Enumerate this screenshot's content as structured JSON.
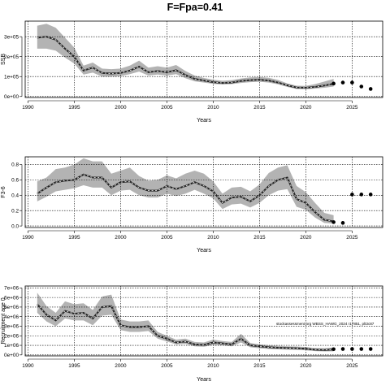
{
  "title": "F=Fpa=0.41",
  "chart_data": [
    {
      "type": "line",
      "xlabel": "Years",
      "ylabel": "SSB",
      "xlim": [
        1989.7,
        2028.3
      ],
      "ylim": [
        -5000,
        378000
      ],
      "x_ticks": [
        1990,
        1995,
        2000,
        2005,
        2010,
        2015,
        2020,
        2025
      ],
      "y_ticks": [
        0,
        100000,
        200000,
        300000
      ],
      "y_tick_labels": [
        "0e+00",
        "1e+05",
        "2e+05",
        "3e+05"
      ],
      "grid": true,
      "x": [
        1991,
        1992,
        1993,
        1994,
        1995,
        1996,
        1997,
        1998,
        1999,
        2000,
        2001,
        2002,
        2003,
        2004,
        2005,
        2006,
        2007,
        2008,
        2009,
        2010,
        2011,
        2012,
        2013,
        2014,
        2015,
        2016,
        2017,
        2018,
        2019,
        2020,
        2021,
        2022,
        2023
      ],
      "median": [
        295000,
        300000,
        285000,
        240000,
        200000,
        130000,
        145000,
        118000,
        115000,
        118000,
        130000,
        150000,
        122000,
        128000,
        122000,
        132000,
        108000,
        88000,
        80000,
        72000,
        68000,
        70000,
        78000,
        82000,
        84000,
        80000,
        70000,
        56000,
        45000,
        44000,
        48000,
        55000,
        64000
      ],
      "lower": [
        240000,
        240000,
        230000,
        195000,
        165000,
        110000,
        120000,
        100000,
        100000,
        102000,
        112000,
        125000,
        105000,
        110000,
        105000,
        112000,
        92000,
        76000,
        70000,
        63000,
        60000,
        62000,
        68000,
        72000,
        74000,
        70000,
        61000,
        48000,
        38000,
        37000,
        40000,
        44000,
        50000
      ],
      "upper": [
        355000,
        365000,
        345000,
        295000,
        245000,
        155000,
        170000,
        140000,
        137000,
        140000,
        155000,
        180000,
        145000,
        152000,
        145000,
        158000,
        128000,
        105000,
        93000,
        84000,
        79000,
        82000,
        90000,
        96000,
        98000,
        94000,
        83000,
        66000,
        54000,
        53000,
        62000,
        75000,
        88000
      ],
      "projection": {
        "x": [
          2023,
          2024,
          2025,
          2026,
          2027
        ],
        "y": [
          65000,
          70000,
          70000,
          50000,
          38000
        ]
      }
    },
    {
      "type": "line",
      "xlabel": "Years",
      "ylabel": "F3-6",
      "xlim": [
        1989.7,
        2028.3
      ],
      "ylim": [
        -0.02,
        0.9
      ],
      "x_ticks": [
        1990,
        1995,
        2000,
        2005,
        2010,
        2015,
        2020,
        2025
      ],
      "y_ticks": [
        0,
        0.2,
        0.4,
        0.6,
        0.8
      ],
      "y_tick_labels": [
        "0.0",
        "0.2",
        "0.4",
        "0.6",
        "0.8"
      ],
      "grid": true,
      "x": [
        1991,
        1992,
        1993,
        1994,
        1995,
        1996,
        1997,
        1998,
        1999,
        2000,
        2001,
        2002,
        2003,
        2004,
        2005,
        2006,
        2007,
        2008,
        2009,
        2010,
        2011,
        2012,
        2013,
        2014,
        2015,
        2016,
        2017,
        2018,
        2019,
        2020,
        2021,
        2022,
        2023
      ],
      "median": [
        0.42,
        0.5,
        0.57,
        0.59,
        0.6,
        0.67,
        0.63,
        0.63,
        0.5,
        0.57,
        0.58,
        0.5,
        0.46,
        0.46,
        0.52,
        0.48,
        0.52,
        0.57,
        0.52,
        0.45,
        0.3,
        0.37,
        0.38,
        0.32,
        0.4,
        0.52,
        0.6,
        0.63,
        0.35,
        0.3,
        0.18,
        0.08,
        0.06
      ],
      "lower": [
        0.32,
        0.38,
        0.45,
        0.47,
        0.49,
        0.53,
        0.5,
        0.5,
        0.4,
        0.46,
        0.47,
        0.4,
        0.37,
        0.37,
        0.42,
        0.39,
        0.42,
        0.47,
        0.42,
        0.36,
        0.22,
        0.28,
        0.29,
        0.24,
        0.3,
        0.4,
        0.46,
        0.48,
        0.25,
        0.21,
        0.11,
        0.04,
        0.03
      ],
      "upper": [
        0.58,
        0.63,
        0.74,
        0.76,
        0.8,
        0.88,
        0.84,
        0.84,
        0.68,
        0.72,
        0.76,
        0.65,
        0.59,
        0.6,
        0.66,
        0.62,
        0.68,
        0.72,
        0.68,
        0.58,
        0.42,
        0.5,
        0.51,
        0.45,
        0.54,
        0.69,
        0.76,
        0.79,
        0.52,
        0.44,
        0.3,
        0.17,
        0.14
      ],
      "projection": {
        "x": [
          2023,
          2024,
          2025,
          2026,
          2027
        ],
        "y": [
          0.05,
          0.04,
          0.41,
          0.41,
          0.41
        ]
      }
    },
    {
      "type": "line",
      "xlabel": "Years",
      "ylabel": "Recruitment age 0",
      "xlim": [
        1989.7,
        2028.3
      ],
      "ylim": [
        -100000,
        7200000
      ],
      "x_ticks": [
        1990,
        1995,
        2000,
        2005,
        2010,
        2015,
        2020,
        2025
      ],
      "y_ticks": [
        0,
        1000000,
        2000000,
        3000000,
        4000000,
        5000000,
        6000000,
        7000000
      ],
      "y_tick_labels": [
        "0e+00",
        "1e+06",
        "2e+06",
        "3e+06",
        "4e+06",
        "5e+06",
        "6e+06",
        "7e+06"
      ],
      "grid": true,
      "x": [
        1991,
        1992,
        1993,
        1994,
        1995,
        1996,
        1997,
        1998,
        1999,
        2000,
        2001,
        2002,
        2003,
        2004,
        2005,
        2006,
        2007,
        2008,
        2009,
        2010,
        2011,
        2012,
        2013,
        2014,
        2015,
        2016,
        2017,
        2018,
        2019,
        2020,
        2021,
        2022,
        2023
      ],
      "median": [
        5300000,
        4200000,
        3600000,
        4600000,
        4300000,
        4400000,
        3800000,
        5000000,
        5100000,
        3100000,
        2900000,
        2900000,
        3000000,
        2000000,
        1700000,
        1300000,
        1400000,
        1100000,
        1050000,
        1300000,
        1200000,
        1100000,
        1700000,
        1000000,
        900000,
        800000,
        750000,
        720000,
        700000,
        640000,
        550000,
        520000,
        560000
      ],
      "lower": [
        4400000,
        3500000,
        3000000,
        3800000,
        3600000,
        3600000,
        3100000,
        4100000,
        4200000,
        2600000,
        2400000,
        2400000,
        2500000,
        1700000,
        1400000,
        1100000,
        1150000,
        900000,
        850000,
        1050000,
        1000000,
        900000,
        1300000,
        800000,
        700000,
        620000,
        580000,
        560000,
        540000,
        480000,
        400000,
        370000,
        380000
      ],
      "upper": [
        6500000,
        5100000,
        4400000,
        5600000,
        5300000,
        5400000,
        4700000,
        6100000,
        6300000,
        3700000,
        3500000,
        3500000,
        3600000,
        2400000,
        2000000,
        1600000,
        1700000,
        1350000,
        1300000,
        1600000,
        1450000,
        1350000,
        2200000,
        1250000,
        1100000,
        1000000,
        950000,
        900000,
        880000,
        820000,
        720000,
        700000,
        780000
      ],
      "projection": {
        "x": [
          2023,
          2024,
          2025,
          2026,
          2027
        ],
        "y": [
          600000,
          620000,
          620000,
          620000,
          620000
        ]
      },
      "annotation": "stockassessment.org WBSS_HAWG_2024 r17851, plt3c87"
    }
  ]
}
